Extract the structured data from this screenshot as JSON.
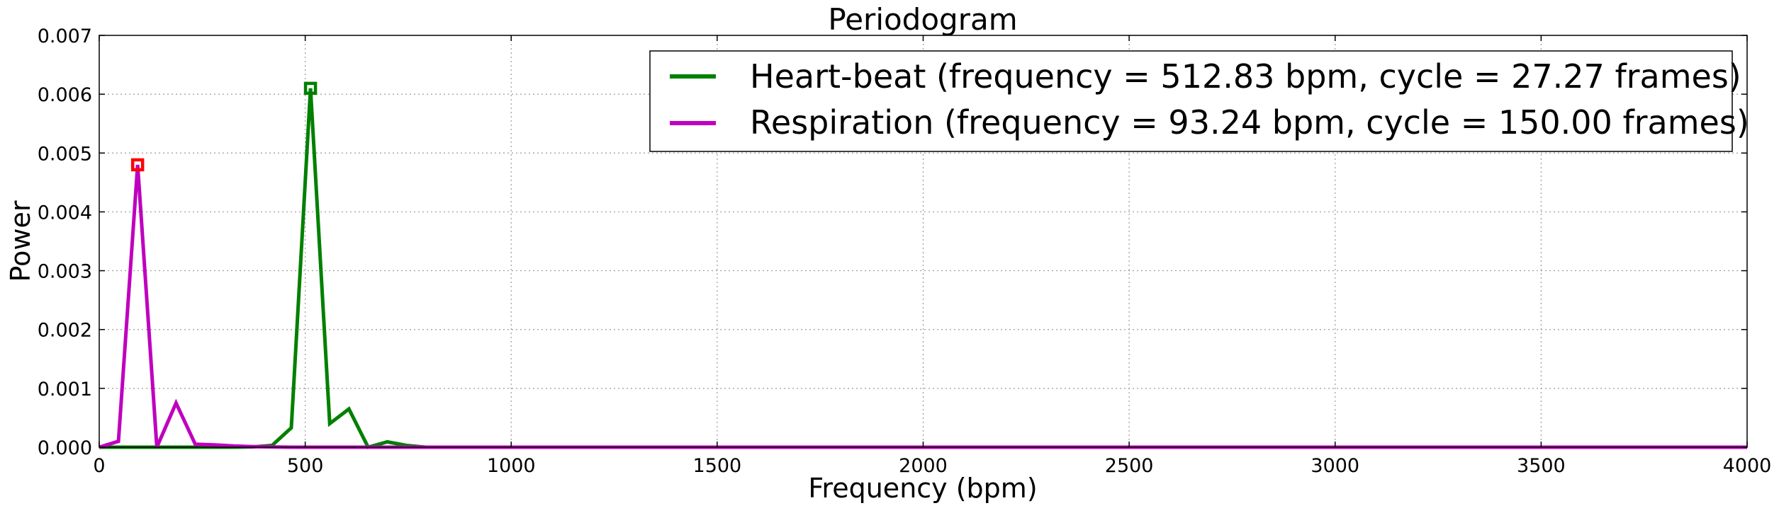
{
  "chart_data": {
    "type": "line",
    "title": "Periodogram",
    "xlabel": "Frequency (bpm)",
    "ylabel": "Power",
    "xlim": [
      0,
      4000
    ],
    "ylim": [
      0,
      0.007
    ],
    "x_ticks": [
      0,
      500,
      1000,
      1500,
      2000,
      2500,
      3000,
      3500,
      4000
    ],
    "y_ticks": [
      0.0,
      0.001,
      0.002,
      0.003,
      0.004,
      0.005,
      0.006,
      0.007
    ],
    "x_tick_labels": [
      "0",
      "500",
      "1000",
      "1500",
      "2000",
      "2500",
      "3000",
      "3500",
      "4000"
    ],
    "y_tick_labels": [
      "0.000",
      "0.001",
      "0.002",
      "0.003",
      "0.004",
      "0.005",
      "0.006",
      "0.007"
    ],
    "grid": true,
    "legend_position": "top-right",
    "series": [
      {
        "name": "Heart-beat (frequency = 512.83 bpm, cycle = 27.27 frames)",
        "color": "#008000",
        "x": [
          0,
          46.6,
          93.2,
          139.9,
          186.5,
          233.1,
          279.7,
          326.3,
          373.0,
          419.6,
          466.2,
          512.8,
          559.4,
          606.1,
          652.7,
          699.3,
          745.9,
          792.5,
          839.2,
          885.8,
          4000
        ],
        "y": [
          0,
          0,
          0,
          0,
          0,
          0,
          0,
          0,
          5e-06,
          3e-05,
          0.00033,
          0.0061,
          0.0004,
          0.00065,
          0,
          9e-05,
          3e-05,
          0,
          0,
          0,
          0
        ],
        "peak": {
          "x": 512.8,
          "y": 0.0061
        }
      },
      {
        "name": "Respiration (frequency = 93.24 bpm, cycle = 150.00 frames)",
        "color": "#bf00bf",
        "x": [
          0,
          46.6,
          93.2,
          139.9,
          186.5,
          233.1,
          279.7,
          326.3,
          373.0,
          419.6,
          466.2,
          512.8,
          559.4,
          4000
        ],
        "y": [
          0,
          0.0001,
          0.0048,
          0,
          0.00075,
          5e-05,
          4e-05,
          2e-05,
          1e-05,
          5e-06,
          0,
          0,
          0,
          0
        ],
        "peak": {
          "x": 93.2,
          "y": 0.0048
        }
      }
    ],
    "peak_marker_colors": [
      "#008000",
      "#ff0000"
    ]
  }
}
